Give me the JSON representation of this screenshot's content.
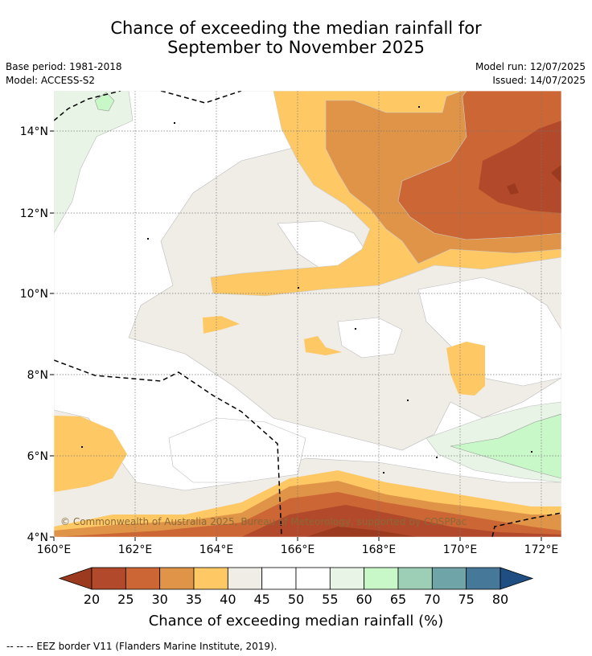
{
  "title": {
    "line1": "Chance of exceeding the median rainfall for",
    "line2": "September to November 2025"
  },
  "meta": {
    "base_period": "Base period: 1981-2018",
    "model": "Model: ACCESS-S2",
    "model_run": "Model run: 12/07/2025",
    "issued": "Issued: 14/07/2025"
  },
  "map": {
    "copyright": "© Commonwealth of Australia 2025, Bureau of Meteorology, supported by COSPPac",
    "x_ticks": [
      "160°E",
      "162°E",
      "164°E",
      "166°E",
      "168°E",
      "170°E",
      "172°E"
    ],
    "y_ticks": [
      "14°N",
      "12°N",
      "10°N",
      "8°N",
      "6°N",
      "4°N"
    ]
  },
  "colorbar": {
    "title": "Chance of exceeding median rainfall (%)",
    "labels": [
      "20",
      "25",
      "30",
      "35",
      "40",
      "45",
      "50",
      "55",
      "60",
      "65",
      "70",
      "75",
      "80"
    ],
    "colors": [
      "#9b3a1f",
      "#b1492a",
      "#cc6634",
      "#e09447",
      "#fec865",
      "#f0ece6",
      "#ffffff",
      "#ffffff",
      "#e8f5e6",
      "#c8f7c8",
      "#9ccfb6",
      "#6fa4a8",
      "#457899",
      "#1f4f82"
    ]
  },
  "legend": {
    "eez": "--  --  -- EEZ border V11 (Flanders Marine Institute, 2019)."
  }
}
